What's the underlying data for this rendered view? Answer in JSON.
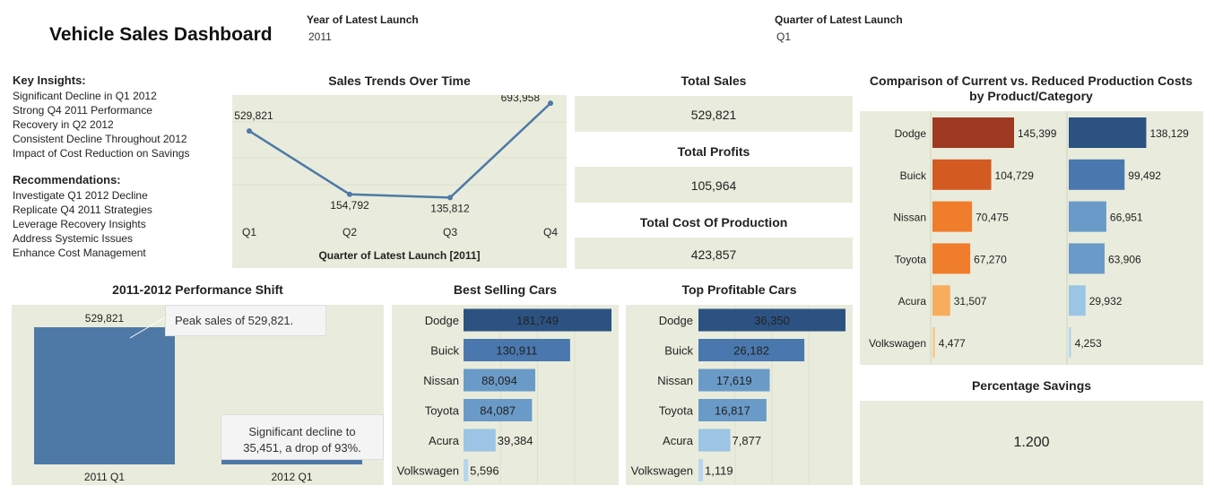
{
  "header": {
    "title": "Vehicle Sales Dashboard",
    "filters": [
      {
        "label": "Year of Latest Launch",
        "value": "2011"
      },
      {
        "label": "Quarter of Latest Launch",
        "value": "Q1"
      }
    ]
  },
  "insights": {
    "key_title": "Key Insights:",
    "key_items": [
      "Significant Decline in Q1 2012",
      "Strong Q4 2011 Performance",
      "Recovery in Q2 2012",
      "Consistent Decline Throughout 2012",
      "Impact of Cost Reduction on Savings"
    ],
    "rec_title": "Recommendations:",
    "rec_items": [
      "Investigate Q1 2012 Decline",
      "Replicate Q4 2011 Strategies",
      "Leverage Recovery Insights",
      "Address Systemic Issues",
      "Enhance Cost Management"
    ]
  },
  "kpis": [
    {
      "label": "Total Sales",
      "value": "529,821"
    },
    {
      "label": "Total Profits",
      "value": "105,964"
    },
    {
      "label": "Total Cost Of Production",
      "value": "423,857"
    }
  ],
  "savings": {
    "title": "Percentage Savings",
    "value": "1.200"
  },
  "callouts": {
    "peak": "Peak sales of 529,821.",
    "decline": "Significant decline to 35,451, a drop of 93%."
  },
  "chart_data": [
    {
      "type": "line",
      "title": "Sales Trends Over Time",
      "xlabel": "Quarter of Latest Launch [2011]",
      "categories": [
        "Q1",
        "Q2",
        "Q3",
        "Q4"
      ],
      "values": [
        529821,
        154792,
        135812,
        693958
      ],
      "labels": [
        "529,821",
        "154,792",
        "135,812",
        "693,958"
      ],
      "color": "#4e79a7"
    },
    {
      "type": "bar",
      "title": "2011-2012 Performance Shift",
      "categories": [
        "2011 Q1",
        "2012 Q1"
      ],
      "values": [
        529821,
        35451
      ],
      "labels": [
        "529,821",
        ""
      ],
      "color": "#4e79a7"
    },
    {
      "type": "bar",
      "orientation": "horizontal",
      "title": "Best Selling Cars",
      "categories": [
        "Dodge",
        "Buick",
        "Nissan",
        "Toyota",
        "Acura",
        "Volkswagen"
      ],
      "values": [
        181749,
        130911,
        88094,
        84087,
        39384,
        5596
      ],
      "labels": [
        "181,749",
        "130,911",
        "88,094",
        "84,087",
        "39,384",
        "5,596"
      ],
      "colors": [
        "#2c5282",
        "#4a78ae",
        "#6a9bc8",
        "#6a9bc8",
        "#9cc4e4",
        "#b6d6ee"
      ]
    },
    {
      "type": "bar",
      "orientation": "horizontal",
      "title": "Top Profitable Cars",
      "categories": [
        "Dodge",
        "Buick",
        "Nissan",
        "Toyota",
        "Acura",
        "Volkswagen"
      ],
      "values": [
        36350,
        26182,
        17619,
        16817,
        7877,
        1119
      ],
      "labels": [
        "36,350",
        "26,182",
        "17,619",
        "16,817",
        "7,877",
        "1,119"
      ],
      "colors": [
        "#2c5282",
        "#4a78ae",
        "#6a9bc8",
        "#6a9bc8",
        "#9cc4e4",
        "#b6d6ee"
      ]
    },
    {
      "type": "bar",
      "orientation": "horizontal",
      "title": "Comparison of Current vs. Reduced Production Costs by Product/Category",
      "categories": [
        "Dodge",
        "Buick",
        "Nissan",
        "Toyota",
        "Acura",
        "Volkswagen"
      ],
      "series": [
        {
          "values": [
            145399,
            104729,
            70475,
            67270,
            31507,
            4477
          ],
          "labels": [
            "145,399",
            "104,729",
            "70,475",
            "67,270",
            "31,507",
            "4,477"
          ],
          "colors": [
            "#9e3a22",
            "#d35b22",
            "#f07d2c",
            "#f07d2c",
            "#f8ac5e",
            "#fbc78f"
          ]
        },
        {
          "values": [
            138129,
            99492,
            66951,
            63906,
            29932,
            4253
          ],
          "labels": [
            "138,129",
            "99,492",
            "66,951",
            "63,906",
            "29,932",
            "4,253"
          ],
          "colors": [
            "#2c5282",
            "#4a78ae",
            "#6a9bc8",
            "#6a9bc8",
            "#9cc4e4",
            "#b6d6ee"
          ]
        }
      ]
    }
  ]
}
